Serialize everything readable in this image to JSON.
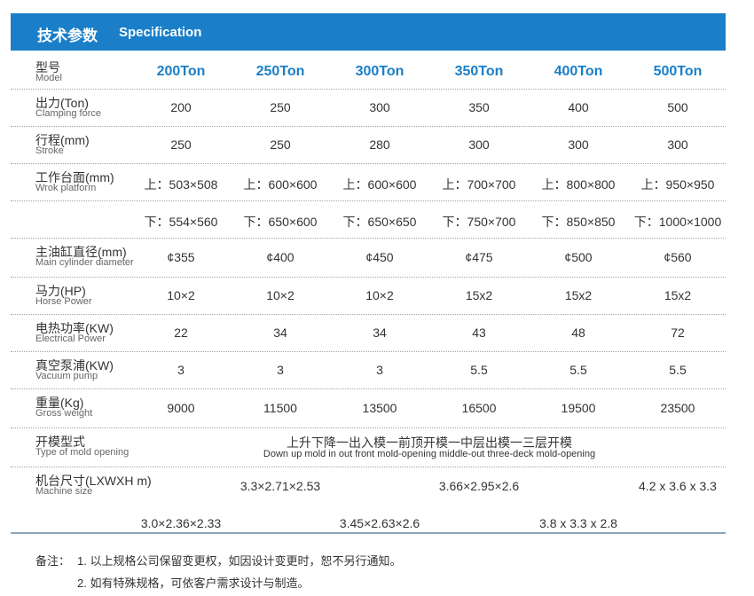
{
  "header": {
    "title_cn": "技术参数",
    "title_en": "Specification"
  },
  "table": {
    "rows": [
      {
        "label": "型号",
        "sublabel": "Model",
        "cells": [
          [
            "200Ton",
            "250Ton",
            "300Ton",
            "350Ton",
            "400Ton",
            "500Ton"
          ]
        ]
      },
      {
        "label": "出力(Ton)",
        "sublabel": "Clamping force",
        "cells": [
          [
            "200",
            "250",
            "300",
            "350",
            "400",
            "500"
          ]
        ]
      },
      {
        "label": "行程(mm)",
        "sublabel": "Stroke",
        "cells": [
          [
            "250",
            "250",
            "280",
            "300",
            "300",
            "300"
          ]
        ]
      },
      {
        "label": "工作台面(mm)",
        "sublabel": "Wrok platform",
        "cells": [
          [
            "上：503×508",
            "上：600×600",
            "上：600×600",
            "上：700×700",
            "上：800×800",
            "上：950×950"
          ],
          [
            "下：554×560",
            "下：650×600",
            "下：650×650",
            "下：750×700",
            "下：850×850",
            "下：1000×1000"
          ]
        ]
      },
      {
        "label": "主油缸直径(mm)",
        "sublabel": "Main cylinder diameter",
        "cells": [
          [
            "¢355",
            "¢400",
            "¢450",
            "¢475",
            "¢500",
            "¢560"
          ]
        ]
      },
      {
        "label": "马力(HP)",
        "sublabel": "Horse Power",
        "cells": [
          [
            "10×2",
            "10×2",
            "10×2",
            "15x2",
            "15x2",
            "15x2"
          ]
        ]
      },
      {
        "label": "电热功率(KW)",
        "sublabel": "Electrical Power",
        "cells": [
          [
            "22",
            "34",
            "34",
            "43",
            "48",
            "72"
          ]
        ]
      },
      {
        "label": "真空泵浦(KW)",
        "sublabel": "Vacuum pump",
        "cells": [
          [
            "3",
            "3",
            "3",
            "5.5",
            "5.5",
            "5.5"
          ]
        ]
      },
      {
        "label": "重量(Kg)",
        "sublabel": "Gross weight",
        "cells": [
          [
            "9000",
            "11500",
            "13500",
            "16500",
            "19500",
            "23500"
          ]
        ]
      },
      {
        "label": "开模型式",
        "sublabel": "Type of mold opening",
        "cells": [
          [
            "上升下降一出入模一前顶开模一中层出模一三层开模"
          ],
          [
            "Down up mold in out front mold-opening middle-out three-deck mold-opening"
          ]
        ]
      },
      {
        "label": "机台尺寸(LXWXH m)",
        "sublabel": "Machine size",
        "cells": [
          [
            "3.3×2.71×2.53",
            "3.66×2.95×2.6",
            "4.2 x 3.6 x 3.3"
          ],
          [
            "3.0×2.36×2.33",
            "3.45×2.63×2.6",
            "3.8 x 3.3 x 2.8"
          ]
        ]
      }
    ]
  },
  "notes": {
    "prefix": "备注：",
    "items": [
      "1. 以上规格公司保留变更权，如因设计变更时，恕不另行通知。",
      "2. 如有特殊规格，可依客户需求设计与制造。"
    ]
  }
}
